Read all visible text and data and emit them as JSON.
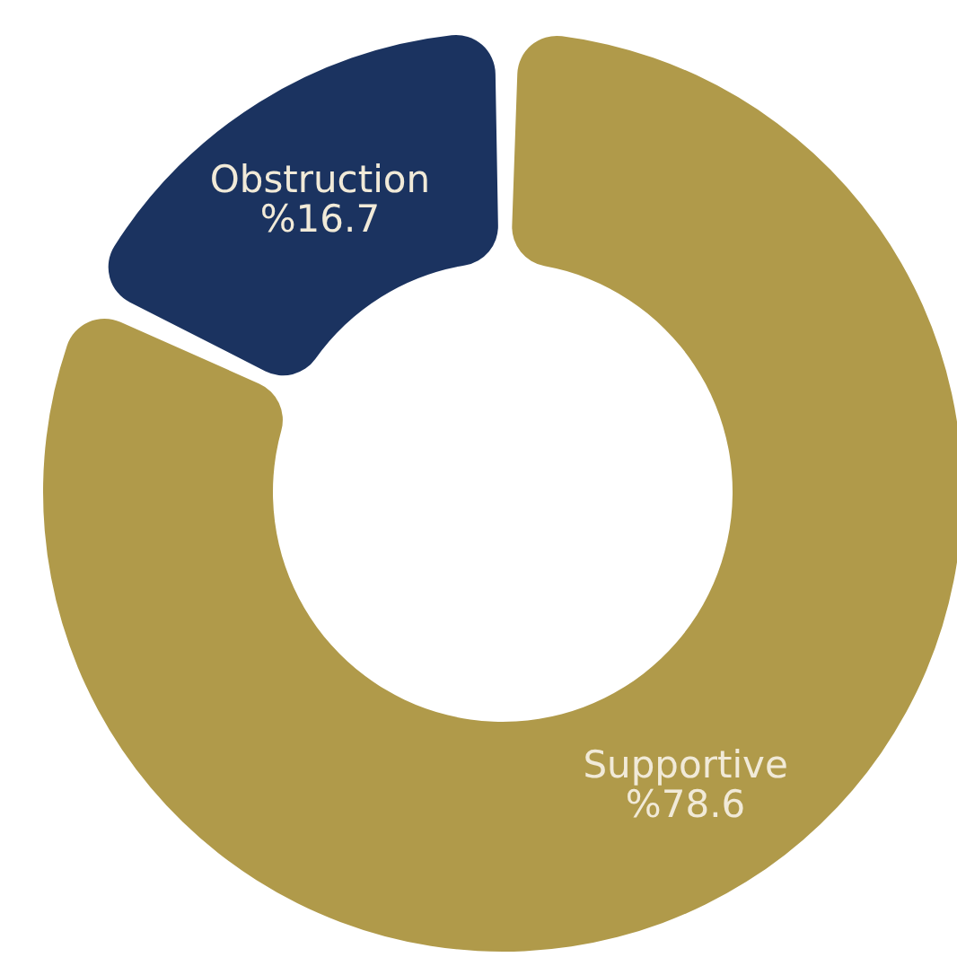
{
  "chart_data": {
    "type": "donut",
    "categories": [
      "Supportive",
      "Obstruction"
    ],
    "values": [
      78.6,
      16.7
    ],
    "value_labels": [
      "%78.6",
      "%16.7"
    ],
    "colors": [
      "#b09a4a",
      "#1b3360"
    ]
  }
}
